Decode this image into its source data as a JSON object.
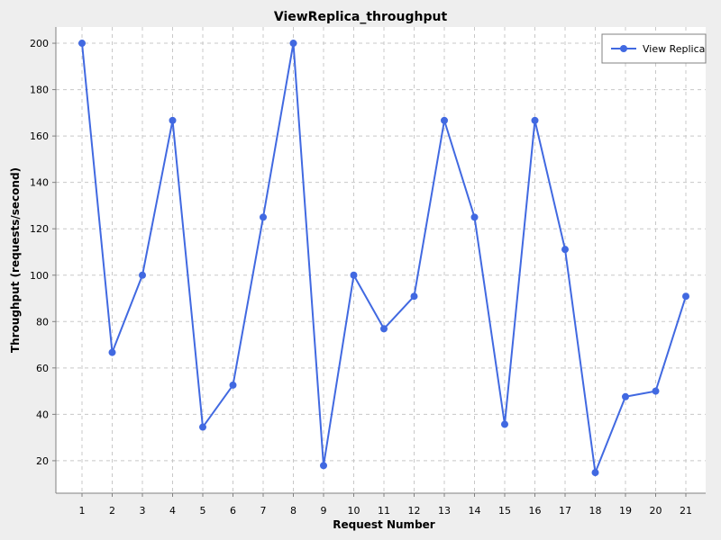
{
  "chart_data": {
    "type": "line",
    "title": "ViewReplica_throughput",
    "xlabel": "Request Number",
    "ylabel": "Throughput (requests/second)",
    "x": [
      1,
      2,
      3,
      4,
      5,
      6,
      7,
      8,
      9,
      10,
      11,
      12,
      13,
      14,
      15,
      16,
      17,
      18,
      19,
      20,
      21
    ],
    "ylim": [
      6,
      207
    ],
    "yticks": [
      20,
      40,
      60,
      80,
      100,
      120,
      140,
      160,
      180,
      200
    ],
    "grid": true,
    "legend_position": "top-right",
    "series": [
      {
        "name": "View Replica",
        "color": "#4169e1",
        "values": [
          200,
          66.7,
          100,
          166.7,
          34.5,
          52.6,
          125,
          200,
          17.9,
          100,
          76.9,
          90.9,
          166.7,
          125,
          35.7,
          166.7,
          111.1,
          14.9,
          47.6,
          50,
          90.9
        ]
      }
    ]
  }
}
